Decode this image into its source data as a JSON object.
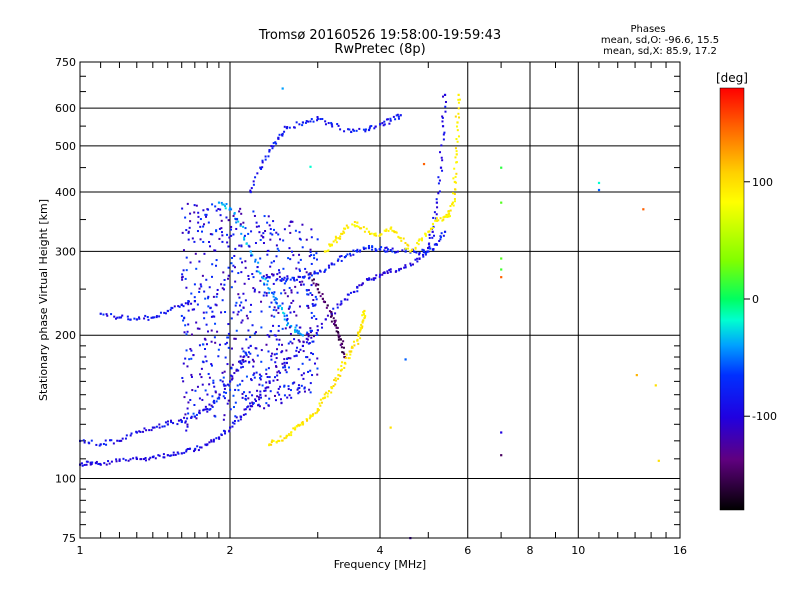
{
  "header": {
    "title_line1": "Tromsø 20160526 19:58:00-19:59:43",
    "title_line2": "RwPretec (8p)"
  },
  "stats": {
    "heading": "Phases",
    "line_o": "mean, sd,O: -96.6, 15.5",
    "line_x": "mean, sd,X: 85.9, 17.2"
  },
  "colorbar": {
    "label": "[deg]",
    "min": -180,
    "max": 180,
    "ticks": [
      100,
      0,
      -100
    ],
    "tick_labels": [
      "100",
      "0",
      "-100"
    ]
  },
  "chart_data": {
    "type": "scatter",
    "title": "Tromsø 20160526 19:58:00-19:59:43",
    "subtitle": "RwPretec (8p)",
    "xlabel": "Frequency [MHz]",
    "ylabel": "Stationary phase Virtual Height [km]",
    "x_scale": "log",
    "y_scale": "log",
    "xlim": [
      1,
      16
    ],
    "ylim": [
      75,
      750
    ],
    "x_ticks": [
      1,
      2,
      4,
      6,
      8,
      10,
      16
    ],
    "x_tick_labels": [
      "1",
      "2",
      "4",
      "6",
      "8",
      "10",
      "16"
    ],
    "x_gridlines": [
      2,
      4,
      6,
      8,
      10
    ],
    "y_ticks": [
      75,
      100,
      200,
      300,
      400,
      500,
      600,
      750
    ],
    "y_tick_labels": [
      "75",
      "100",
      "200",
      "300",
      "400",
      "500",
      "600",
      "750"
    ],
    "y_gridlines": [
      100,
      200,
      300,
      400,
      500,
      600
    ],
    "grid": true,
    "color_variable": "phase [deg]",
    "series": [
      {
        "color_phase": -98,
        "points": [
          [
            1.0,
            107
          ],
          [
            1.05,
            108
          ],
          [
            1.1,
            107
          ],
          [
            1.2,
            109
          ],
          [
            1.3,
            110
          ],
          [
            1.4,
            111
          ],
          [
            1.5,
            112
          ],
          [
            1.6,
            113
          ],
          [
            1.7,
            115
          ],
          [
            1.8,
            118
          ],
          [
            1.9,
            122
          ],
          [
            2.0,
            128
          ],
          [
            2.1,
            135
          ],
          [
            2.2,
            142
          ],
          [
            2.3,
            150
          ],
          [
            2.4,
            160
          ],
          [
            2.6,
            175
          ],
          [
            2.8,
            190
          ],
          [
            3.0,
            205
          ],
          [
            3.2,
            222
          ],
          [
            3.4,
            238
          ],
          [
            3.6,
            252
          ],
          [
            3.8,
            262
          ],
          [
            4.0,
            268
          ],
          [
            4.2,
            272
          ],
          [
            4.5,
            278
          ],
          [
            4.8,
            290
          ],
          [
            5.0,
            305
          ],
          [
            5.1,
            330
          ],
          [
            5.2,
            380
          ],
          [
            5.3,
            450
          ],
          [
            5.35,
            550
          ],
          [
            5.4,
            640
          ]
        ]
      },
      {
        "color_phase": -92,
        "points": [
          [
            1.0,
            120
          ],
          [
            1.1,
            118
          ],
          [
            1.2,
            120
          ],
          [
            1.3,
            125
          ],
          [
            1.4,
            128
          ],
          [
            1.5,
            130
          ],
          [
            1.6,
            132
          ],
          [
            1.7,
            135
          ],
          [
            1.8,
            140
          ],
          [
            1.9,
            148
          ],
          [
            2.0,
            160
          ],
          [
            2.1,
            175
          ],
          [
            2.2,
            190
          ]
        ]
      },
      {
        "color_phase": -90,
        "points": [
          [
            1.1,
            222
          ],
          [
            1.2,
            218
          ],
          [
            1.3,
            216
          ],
          [
            1.4,
            218
          ],
          [
            1.5,
            225
          ],
          [
            1.6,
            232
          ],
          [
            1.7,
            236
          ]
        ]
      },
      {
        "color_phase": -85,
        "points": [
          [
            2.4,
            265
          ],
          [
            2.6,
            262
          ],
          [
            2.8,
            265
          ],
          [
            3.0,
            270
          ],
          [
            3.2,
            282
          ],
          [
            3.4,
            292
          ],
          [
            3.6,
            300
          ],
          [
            3.8,
            305
          ],
          [
            4.0,
            303
          ],
          [
            4.2,
            302
          ],
          [
            4.5,
            300
          ],
          [
            4.8,
            298
          ],
          [
            5.0,
            300
          ],
          [
            5.2,
            310
          ],
          [
            5.4,
            330
          ]
        ]
      },
      {
        "color_phase": -88,
        "points": [
          [
            2.2,
            400
          ],
          [
            2.3,
            450
          ],
          [
            2.4,
            490
          ],
          [
            2.5,
            520
          ],
          [
            2.6,
            545
          ],
          [
            2.8,
            560
          ],
          [
            3.0,
            570
          ],
          [
            3.2,
            555
          ],
          [
            3.5,
            535
          ],
          [
            3.8,
            540
          ],
          [
            4.0,
            555
          ],
          [
            4.2,
            565
          ],
          [
            4.4,
            580
          ]
        ]
      },
      {
        "color_phase": -40,
        "points": [
          [
            1.9,
            380
          ],
          [
            2.0,
            370
          ],
          [
            2.1,
            340
          ],
          [
            2.2,
            300
          ],
          [
            2.3,
            270
          ],
          [
            2.4,
            250
          ],
          [
            2.5,
            230
          ],
          [
            2.6,
            215
          ],
          [
            2.7,
            205
          ],
          [
            2.8,
            200
          ]
        ]
      },
      {
        "color_phase": -150,
        "points": [
          [
            2.9,
            270
          ],
          [
            3.0,
            250
          ],
          [
            3.1,
            235
          ],
          [
            3.2,
            220
          ],
          [
            3.25,
            210
          ],
          [
            3.3,
            200
          ],
          [
            3.35,
            192
          ],
          [
            3.4,
            180
          ]
        ]
      },
      {
        "color_phase": 95,
        "points": [
          [
            2.4,
            118
          ],
          [
            2.5,
            120
          ],
          [
            2.6,
            123
          ],
          [
            2.7,
            127
          ],
          [
            2.8,
            130
          ],
          [
            2.9,
            135
          ],
          [
            3.0,
            140
          ],
          [
            3.1,
            148
          ],
          [
            3.2,
            155
          ],
          [
            3.3,
            165
          ],
          [
            3.4,
            175
          ],
          [
            3.5,
            185
          ],
          [
            3.6,
            195
          ],
          [
            3.65,
            205
          ],
          [
            3.7,
            215
          ],
          [
            3.72,
            225
          ]
        ]
      },
      {
        "color_phase": 90,
        "points": [
          [
            3.1,
            300
          ],
          [
            3.2,
            310
          ],
          [
            3.3,
            320
          ],
          [
            3.4,
            335
          ],
          [
            3.6,
            345
          ],
          [
            3.8,
            330
          ],
          [
            4.0,
            325
          ],
          [
            4.2,
            335
          ],
          [
            4.4,
            320
          ],
          [
            4.6,
            300
          ],
          [
            4.8,
            318
          ],
          [
            5.0,
            330
          ],
          [
            5.2,
            348
          ],
          [
            5.4,
            355
          ],
          [
            5.5,
            360
          ],
          [
            5.6,
            380
          ],
          [
            5.65,
            420
          ],
          [
            5.7,
            480
          ],
          [
            5.72,
            560
          ],
          [
            5.75,
            640
          ]
        ]
      }
    ],
    "isolated_points": [
      {
        "x": 7.0,
        "y": 450,
        "color_phase": 10
      },
      {
        "x": 7.0,
        "y": 380,
        "color_phase": 20
      },
      {
        "x": 7.0,
        "y": 290,
        "color_phase": 20
      },
      {
        "x": 7.0,
        "y": 275,
        "color_phase": 15
      },
      {
        "x": 7.0,
        "y": 265,
        "color_phase": 150
      },
      {
        "x": 7.0,
        "y": 125,
        "color_phase": -100
      },
      {
        "x": 7.0,
        "y": 112,
        "color_phase": -150
      },
      {
        "x": 11.0,
        "y": 418,
        "color_phase": -20
      },
      {
        "x": 11.0,
        "y": 404,
        "color_phase": -60
      },
      {
        "x": 13.5,
        "y": 368,
        "color_phase": 150
      },
      {
        "x": 13.1,
        "y": 165,
        "color_phase": 120
      },
      {
        "x": 14.3,
        "y": 157,
        "color_phase": 100
      },
      {
        "x": 14.5,
        "y": 109,
        "color_phase": 100
      },
      {
        "x": 4.5,
        "y": 178,
        "color_phase": -60
      },
      {
        "x": 4.9,
        "y": 458,
        "color_phase": 150
      },
      {
        "x": 2.55,
        "y": 660,
        "color_phase": -40
      },
      {
        "x": 2.9,
        "y": 452,
        "color_phase": -20
      },
      {
        "x": 4.6,
        "y": 75,
        "color_phase": -120
      },
      {
        "x": 4.2,
        "y": 128,
        "color_phase": 100
      }
    ]
  }
}
